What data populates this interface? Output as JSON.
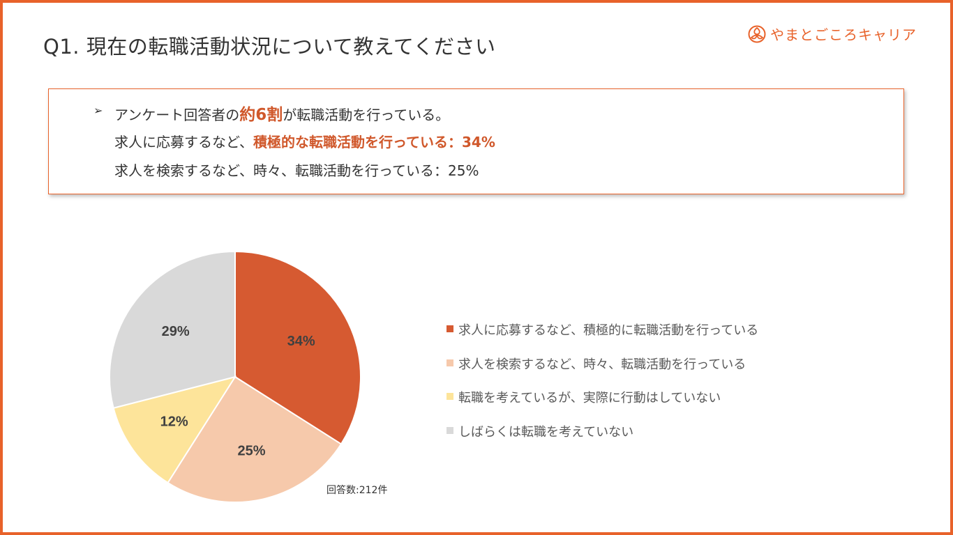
{
  "title": "Q1. 現在の転職活動状況について教えてください",
  "brand": {
    "name": "やまとごころキャリア",
    "logo_icon": "yamatogokoro-logo-icon",
    "color": "#e8622a"
  },
  "summary": {
    "line1_prefix": "アンケート回答者の",
    "line1_emphasis": "約6割",
    "line1_suffix": "が転職活動を行っている。",
    "line2_prefix": "求人に応募するなど、",
    "line2_emphasis": "積極的な転職活動を行っている：34%",
    "line3": "求人を検索するなど、時々、転職活動を行っている：25%",
    "bullet_icon": "arrow-bullet-icon"
  },
  "chart_data": {
    "type": "pie",
    "categories": [
      "求人に応募するなど、積極的に転職活動を行っている",
      "求人を検索するなど、時々、転職活動を行っている",
      "転職を考えているが、実際に行動はしていない",
      "しばらくは転職を考えていない"
    ],
    "values": [
      34,
      25,
      12,
      29
    ],
    "labels": [
      "34%",
      "25%",
      "12%",
      "29%"
    ],
    "colors": [
      "#d65a31",
      "#f6c9ab",
      "#fde49a",
      "#d9d9d9"
    ],
    "legend_position": "right",
    "note": "回答数:212件"
  }
}
